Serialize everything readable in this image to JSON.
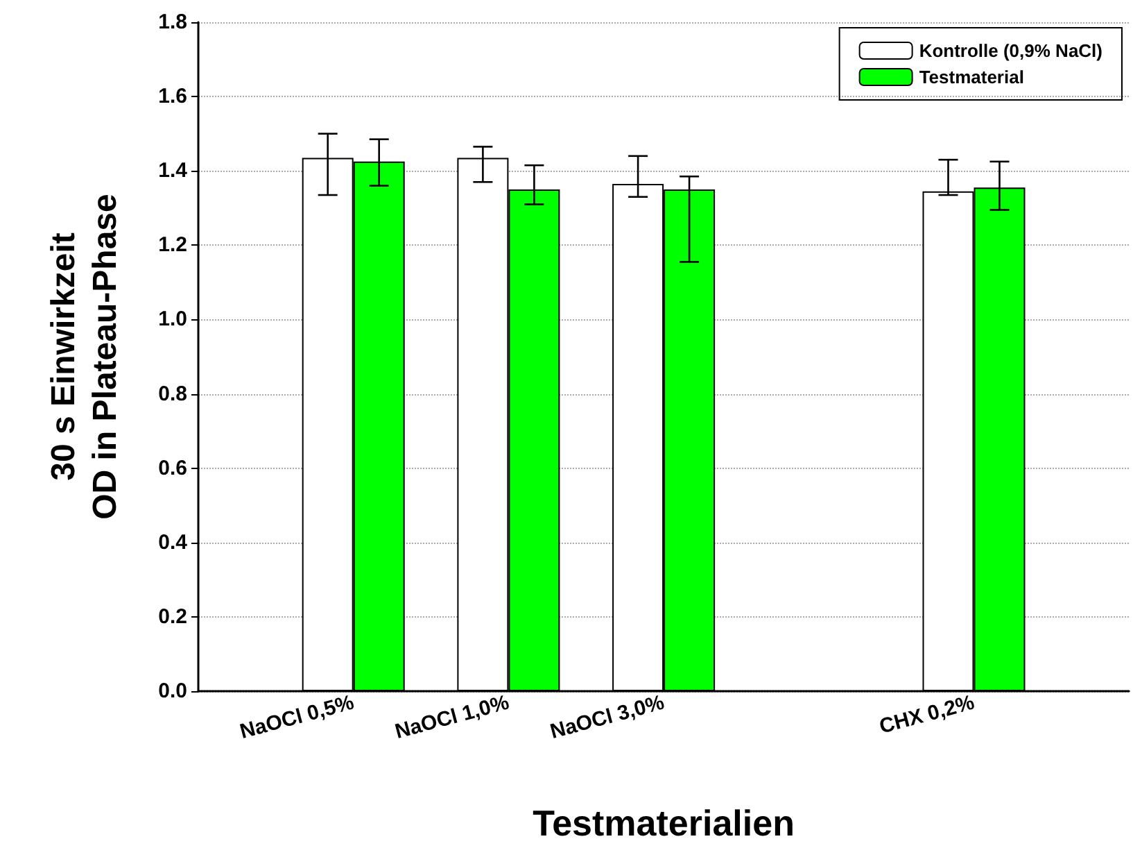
{
  "chart_data": {
    "type": "bar",
    "xlabel": "Testmaterialien",
    "ylabel": "30 s Einwirkzeit\nOD in Plateau-Phase",
    "categories": [
      null,
      "NaOCl 0,5%",
      "NaOCl 1,0%",
      "NaOCl 3,0%",
      null,
      "CHX 0,2%",
      null
    ],
    "series": [
      {
        "name": "Kontrolle (0,9% NaCl)",
        "color": "#ffffff",
        "values": [
          null,
          1.435,
          1.435,
          1.365,
          null,
          1.345,
          null
        ],
        "errors": [
          null,
          [
            1.335,
            1.5
          ],
          [
            1.37,
            1.465
          ],
          [
            1.33,
            1.44
          ],
          null,
          [
            1.335,
            1.43
          ],
          null
        ]
      },
      {
        "name": "Testmaterial",
        "color": "#00ff00",
        "values": [
          null,
          1.425,
          1.35,
          1.35,
          null,
          1.355,
          null
        ],
        "errors": [
          null,
          [
            1.36,
            1.485
          ],
          [
            1.31,
            1.415
          ],
          [
            1.155,
            1.385
          ],
          null,
          [
            1.295,
            1.425
          ],
          null
        ]
      }
    ],
    "ylim": [
      0,
      1.8
    ],
    "yticks": [
      {
        "value": 0,
        "label": "0.0"
      },
      0.2,
      0.4,
      0.6,
      0.8,
      {
        "value": 1,
        "label": "1.0"
      },
      1.2,
      1.4,
      1.6,
      1.8
    ],
    "grid": "y",
    "legend": "top right"
  }
}
